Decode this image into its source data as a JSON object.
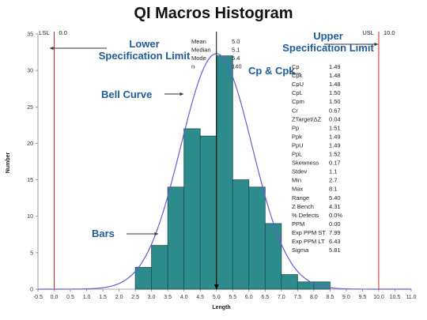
{
  "title": "QI Macros Histogram",
  "annotations": {
    "lsl_label": "Lower\nSpecification Limit",
    "usl_label": "Upper\nSpecification Limit",
    "cp_cpk_label": "Cp & Cpk",
    "bell_curve_label": "Bell Curve",
    "bars_label": "Bars"
  },
  "colors": {
    "bar_fill": "#2e8b8b",
    "bar_stroke": "#1a4f4f",
    "curve": "#6b5bd6",
    "spec_line": "#d92020",
    "mean_line": "#000000",
    "annotation": "#1f5c99"
  },
  "icons": {
    "annotation_arrow": "left-arrow-icon",
    "upper_arrow": "right-arrow-icon"
  },
  "chart_data": {
    "type": "bar",
    "title": "QI Macros Histogram",
    "xlabel": "Length",
    "ylabel": "Number",
    "xlim": [
      -0.5,
      11.0
    ],
    "ylim": [
      0,
      35
    ],
    "x_ticks": [
      "-0.5",
      "0.0",
      "0.5",
      "1.0",
      "1.5",
      "2.0",
      "2.5",
      "3.0",
      "3.5",
      "4.0",
      "4.5",
      "5.0",
      "5.5",
      "6.0",
      "6.5",
      "7.0",
      "7.5",
      "8.0",
      "8.5",
      "9.0",
      "9.5",
      "10.0",
      "10.5",
      "11.0"
    ],
    "y_ticks": [
      0,
      5,
      10,
      15,
      20,
      25,
      30,
      35
    ],
    "bins": [
      {
        "from": 2.5,
        "to": 3.0,
        "count": 3
      },
      {
        "from": 3.0,
        "to": 3.5,
        "count": 6
      },
      {
        "from": 3.5,
        "to": 4.0,
        "count": 14
      },
      {
        "from": 4.0,
        "to": 4.5,
        "count": 22
      },
      {
        "from": 4.5,
        "to": 5.0,
        "count": 21
      },
      {
        "from": 5.0,
        "to": 5.5,
        "count": 32
      },
      {
        "from": 5.5,
        "to": 6.0,
        "count": 15
      },
      {
        "from": 6.0,
        "to": 6.5,
        "count": 14
      },
      {
        "from": 6.5,
        "to": 7.0,
        "count": 9
      },
      {
        "from": 7.0,
        "to": 7.5,
        "count": 2
      },
      {
        "from": 7.5,
        "to": 8.0,
        "count": 1
      },
      {
        "from": 8.0,
        "to": 8.5,
        "count": 1
      }
    ],
    "normal_curve": {
      "mean": 5.0,
      "stdev": 1.1,
      "peak": 32.3
    },
    "spec_limits": {
      "lsl": {
        "label": "LSL",
        "value": "0.0",
        "x": 0.0
      },
      "usl": {
        "label": "USL",
        "value": "10.0",
        "x": 10.0
      }
    },
    "mean_line_x": 5.0,
    "summary_stats": [
      {
        "label": "Mean",
        "value": "5.0"
      },
      {
        "label": "Median",
        "value": "5.1"
      },
      {
        "label": "Mode",
        "value": "5.4"
      },
      {
        "label": "n",
        "value": "140"
      }
    ],
    "capability_stats": [
      {
        "label": "Cp",
        "value": "1.49"
      },
      {
        "label": "Cpk",
        "value": "1.48"
      },
      {
        "label": "CpU",
        "value": "1.48"
      },
      {
        "label": "CpL",
        "value": "1.50"
      },
      {
        "label": "Cpm",
        "value": "1.50"
      },
      {
        "label": "Cr",
        "value": "0.67"
      },
      {
        "label": "ZTarget/ΔZ",
        "value": "0.04"
      },
      {
        "label": "Pp",
        "value": "1.51"
      },
      {
        "label": "Ppk",
        "value": "1.49"
      },
      {
        "label": "PpU",
        "value": "1.49"
      },
      {
        "label": "PpL",
        "value": "1.52"
      },
      {
        "label": "Skewness",
        "value": "0.17"
      },
      {
        "label": "Stdev",
        "value": "1.1"
      },
      {
        "label": "Min",
        "value": "2.7"
      },
      {
        "label": "Max",
        "value": "8.1"
      },
      {
        "label": "Range",
        "value": "5.40"
      },
      {
        "label": "Z Bench",
        "value": "4.31"
      },
      {
        "label": "% Defects",
        "value": "0.0%"
      },
      {
        "label": "PPM",
        "value": "0.00"
      },
      {
        "label": "Exp PPM ST",
        "value": "7.99"
      },
      {
        "label": "Exp PPM LT",
        "value": "6.43"
      },
      {
        "label": "Sigma",
        "value": "5.81"
      }
    ]
  }
}
